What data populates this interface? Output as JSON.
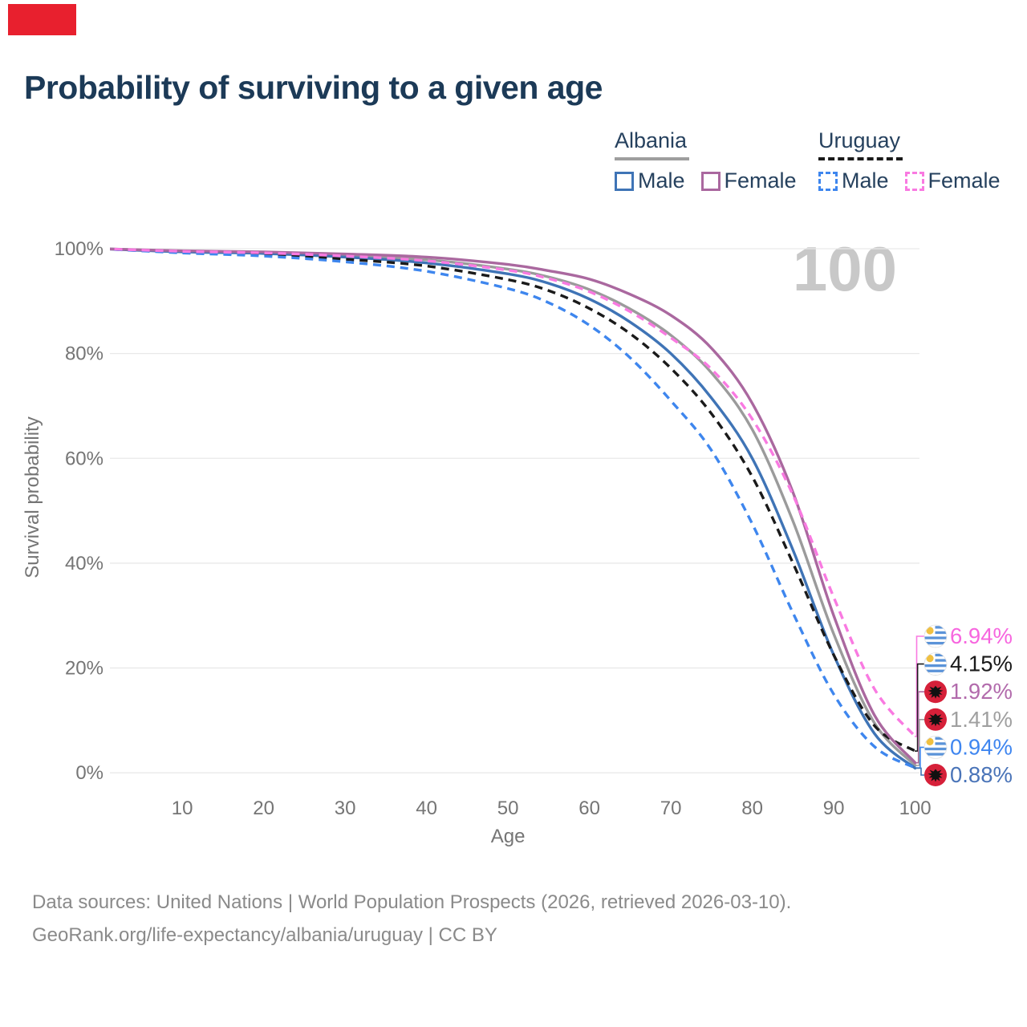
{
  "title": "Probability of surviving to a given age",
  "watermark": "100",
  "artifact": {
    "color": "#e8202e"
  },
  "legend": {
    "groups": [
      {
        "label": "Albania",
        "line_style": "solid",
        "line_color": "#9e9e9e",
        "items": [
          {
            "label": "Male",
            "color": "#3f74b6",
            "dashed": false
          },
          {
            "label": "Female",
            "color": "#aa689f",
            "dashed": false
          }
        ]
      },
      {
        "label": "Uruguay",
        "line_style": "dashed",
        "line_color": "#1a1a1a",
        "items": [
          {
            "label": "Male",
            "color": "#3e86ee",
            "dashed": true
          },
          {
            "label": "Female",
            "color": "#f97ae1",
            "dashed": true
          }
        ]
      }
    ]
  },
  "chart_data": {
    "type": "line",
    "title": "Probability of surviving to a given age",
    "xlabel": "Age",
    "ylabel": "Survival probability",
    "xlim": [
      0,
      100
    ],
    "ylim": [
      0,
      100
    ],
    "grid": true,
    "x_ticks": [
      10,
      20,
      30,
      40,
      50,
      60,
      70,
      80,
      90,
      100
    ],
    "y_ticks": [
      0,
      20,
      40,
      60,
      80,
      100
    ],
    "y_tick_suffix": "%",
    "age_annotation": "100",
    "ages": [
      0,
      10,
      20,
      30,
      40,
      50,
      55,
      60,
      65,
      70,
      75,
      80,
      85,
      90,
      95,
      100
    ],
    "series": [
      {
        "name": "Albania All",
        "country": "albania",
        "sex": "all",
        "color": "#9b9b9b",
        "dash": "solid",
        "end_label": "1.41%",
        "values": [
          100,
          99.5,
          99.2,
          98.7,
          97.9,
          96.1,
          94.6,
          92.2,
          88.5,
          83.5,
          76.3,
          65.5,
          48.0,
          26.5,
          9.5,
          1.41
        ]
      },
      {
        "name": "Albania Male",
        "country": "albania",
        "sex": "male",
        "color": "#3f74b6",
        "dash": "solid",
        "end_label": "0.88%",
        "values": [
          100,
          99.4,
          99.1,
          98.4,
          97.3,
          95.2,
          93.4,
          90.4,
          86.0,
          80.0,
          71.5,
          60.0,
          42.5,
          22.5,
          7.5,
          0.88
        ]
      },
      {
        "name": "Uruguay All",
        "country": "uruguay",
        "sex": "all",
        "color": "#1a1a1a",
        "dash": "dashed",
        "end_label": "4.15%",
        "values": [
          100,
          99.3,
          98.9,
          98.0,
          96.7,
          94.1,
          92.0,
          88.6,
          83.8,
          77.2,
          68.5,
          56.5,
          40.0,
          22.5,
          9.0,
          4.15
        ]
      },
      {
        "name": "Albania Female",
        "country": "albania",
        "sex": "female",
        "color": "#aa689f",
        "dash": "solid",
        "end_label": "1.92%",
        "values": [
          100,
          99.6,
          99.4,
          99.0,
          98.4,
          97.0,
          95.8,
          94.2,
          91.3,
          87.3,
          81.0,
          70.5,
          53.5,
          30.0,
          11.0,
          1.92
        ]
      },
      {
        "name": "Uruguay Male",
        "country": "uruguay",
        "sex": "male",
        "color": "#3e86ee",
        "dash": "dashed",
        "end_label": "0.94%",
        "values": [
          100,
          99.2,
          98.6,
          97.5,
          95.7,
          92.4,
          89.7,
          85.4,
          79.2,
          71.0,
          61.5,
          47.5,
          30.5,
          15.0,
          5.0,
          0.94
        ]
      },
      {
        "name": "Uruguay Female",
        "country": "uruguay",
        "sex": "female",
        "color": "#f97ae1",
        "dash": "dashed",
        "end_label": "6.94%",
        "values": [
          100,
          99.5,
          99.2,
          98.6,
          97.7,
          95.9,
          94.3,
          91.8,
          88.0,
          83.0,
          77.0,
          67.5,
          53.0,
          33.5,
          16.0,
          6.94
        ]
      }
    ],
    "end_labels_top_to_bottom": [
      {
        "text": "6.94%",
        "series": "Uruguay Female",
        "flag": "uruguay",
        "color": "#f766df"
      },
      {
        "text": "4.15%",
        "series": "Uruguay All",
        "flag": "uruguay",
        "color": "#1a1a1a"
      },
      {
        "text": "1.92%",
        "series": "Albania Female",
        "flag": "albania",
        "color": "#b26bac"
      },
      {
        "text": "1.41%",
        "series": "Albania All",
        "flag": "albania",
        "color": "#a0a0a0"
      },
      {
        "text": "0.94%",
        "series": "Uruguay Male",
        "flag": "uruguay",
        "color": "#3f86f0"
      },
      {
        "text": "0.88%",
        "series": "Albania Male",
        "flag": "albania",
        "color": "#4a74b8"
      }
    ]
  },
  "footer": {
    "line1": "Data sources: United Nations | World Population Prospects (2026, retrieved 2026-03-10).",
    "line2": "GeoRank.org/life-expectancy/albania/uruguay | CC BY"
  },
  "colors": {
    "title": "#1c3a57",
    "legend_text": "#26415e",
    "axis_text": "#757575",
    "grid": "#e9e9e9",
    "watermark": "#c8c8c8",
    "footer": "#8a8a8a"
  }
}
